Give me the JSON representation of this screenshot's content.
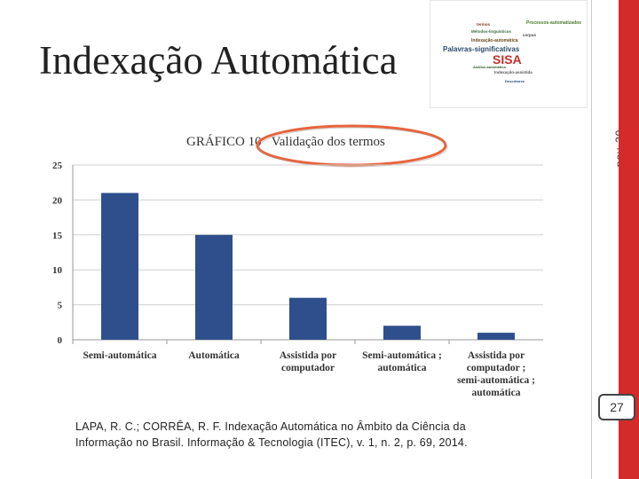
{
  "slide": {
    "title": "Indexação Automática",
    "date_label": "nov-20",
    "page_number": "27",
    "citation_line1": "LAPA, R. C.; CORRÊA, R. F. Indexação Automática no Âmbito da Ciência da",
    "citation_line2": "Informação no Brasil. Informação & Tecnologia (ITEC), v. 1, n. 2, p. 69, 2014."
  },
  "wordcloud": {
    "words": [
      "Processos-automatizados",
      "Palavras-significativas",
      "SISA",
      "Indexação-automática",
      "Métodos-linguísticos",
      "Indexação-assistida",
      "Análise-automática",
      "corpus",
      "termos",
      "Descritores"
    ]
  },
  "colors": {
    "accent_red": "#d42a2a",
    "bar": "#2e4f8c",
    "highlight_ellipse": "#e8643c"
  },
  "chart_data": {
    "type": "bar",
    "title": "GRÁFICO 10   Validação dos termos",
    "categories": [
      [
        "Semi-automática"
      ],
      [
        "Automática"
      ],
      [
        "Assistida por",
        "computador"
      ],
      [
        "Semi-automática ;",
        "automática"
      ],
      [
        "Assistida por",
        "computador ;",
        "semi-automática ;",
        "automática"
      ]
    ],
    "values": [
      21,
      15,
      6,
      2,
      1
    ],
    "yticks": [
      0,
      5,
      10,
      15,
      20,
      25
    ],
    "ylim": [
      0,
      25
    ],
    "xlabel": "",
    "ylabel": "",
    "grid": true
  }
}
